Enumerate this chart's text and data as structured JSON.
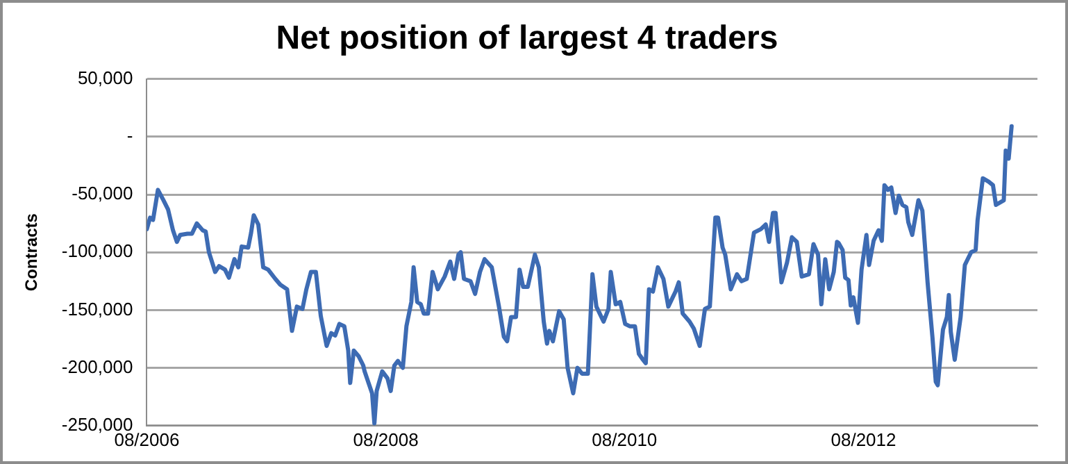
{
  "chart_data": {
    "type": "line",
    "title": "Net position of largest 4 traders",
    "ylabel": "Contracts",
    "x": [
      "2006-08-01",
      "2006-08-11",
      "2006-08-20",
      "2006-09-04",
      "2006-09-21",
      "2006-10-05",
      "2006-10-20",
      "2006-11-01",
      "2006-11-11",
      "2006-12-03",
      "2006-12-17",
      "2007-01-01",
      "2007-01-19",
      "2007-01-28",
      "2007-02-07",
      "2007-02-26",
      "2007-03-10",
      "2007-03-28",
      "2007-04-09",
      "2007-04-26",
      "2007-05-08",
      "2007-05-18",
      "2007-06-07",
      "2007-06-16",
      "2007-06-24",
      "2007-07-08",
      "2007-07-23",
      "2007-08-07",
      "2007-08-29",
      "2007-09-13",
      "2007-10-04",
      "2007-10-19",
      "2007-11-03",
      "2007-11-20",
      "2007-12-02",
      "2007-12-16",
      "2007-12-31",
      "2008-01-15",
      "2008-02-02",
      "2008-02-16",
      "2008-02-28",
      "2008-03-12",
      "2008-03-27",
      "2008-04-08",
      "2008-04-14",
      "2008-04-25",
      "2008-05-10",
      "2008-05-24",
      "2008-05-28",
      "2008-06-20",
      "2008-06-27",
      "2008-07-04",
      "2008-07-21",
      "2008-08-06",
      "2008-08-16",
      "2008-08-27",
      "2008-09-07",
      "2008-09-22",
      "2008-10-03",
      "2008-10-18",
      "2008-10-25",
      "2008-11-05",
      "2008-11-16",
      "2008-11-25",
      "2008-12-08",
      "2008-12-22",
      "2009-01-07",
      "2009-01-28",
      "2009-02-14",
      "2009-02-26",
      "2009-03-11",
      "2009-03-18",
      "2009-03-28",
      "2009-04-17",
      "2009-05-01",
      "2009-05-16",
      "2009-05-30",
      "2009-06-21",
      "2009-07-13",
      "2009-07-28",
      "2009-08-07",
      "2009-08-19",
      "2009-09-03",
      "2009-09-14",
      "2009-09-25",
      "2009-10-09",
      "2009-10-31",
      "2009-11-12",
      "2009-11-27",
      "2009-12-07",
      "2009-12-14",
      "2009-12-25",
      "2010-01-13",
      "2010-01-27",
      "2010-02-08",
      "2010-02-25",
      "2010-03-10",
      "2010-03-24",
      "2010-04-11",
      "2010-04-25",
      "2010-05-07",
      "2010-05-29",
      "2010-06-13",
      "2010-06-20",
      "2010-07-05",
      "2010-07-19",
      "2010-08-03",
      "2010-08-17",
      "2010-09-02",
      "2010-09-14",
      "2010-09-24",
      "2010-10-05",
      "2010-10-15",
      "2010-10-27",
      "2010-11-11",
      "2010-11-28",
      "2010-12-13",
      "2011-01-04",
      "2011-01-14",
      "2011-01-26",
      "2011-02-16",
      "2011-03-01",
      "2011-03-19",
      "2011-04-04",
      "2011-04-19",
      "2011-05-06",
      "2011-05-14",
      "2011-05-28",
      "2011-06-05",
      "2011-06-22",
      "2011-07-11",
      "2011-07-25",
      "2011-08-10",
      "2011-09-01",
      "2011-09-22",
      "2011-10-07",
      "2011-10-17",
      "2011-10-29",
      "2011-11-06",
      "2011-11-24",
      "2011-12-11",
      "2011-12-26",
      "2012-01-10",
      "2012-01-25",
      "2012-02-16",
      "2012-03-01",
      "2012-03-15",
      "2012-03-25",
      "2012-04-06",
      "2012-04-18",
      "2012-05-02",
      "2012-05-12",
      "2012-05-17",
      "2012-05-29",
      "2012-06-06",
      "2012-06-16",
      "2012-06-23",
      "2012-07-01",
      "2012-07-15",
      "2012-07-26",
      "2012-08-10",
      "2012-08-18",
      "2012-09-01",
      "2012-09-16",
      "2012-09-26",
      "2012-10-04",
      "2012-10-15",
      "2012-10-25",
      "2012-11-07",
      "2012-11-17",
      "2012-11-28",
      "2012-12-10",
      "2012-12-16",
      "2012-12-28",
      "2013-01-16",
      "2013-01-28",
      "2013-02-13",
      "2013-02-28",
      "2013-03-10",
      "2013-03-16",
      "2013-04-01",
      "2013-04-13",
      "2013-04-19",
      "2013-04-25",
      "2013-05-07",
      "2013-05-25",
      "2013-06-07",
      "2013-06-26",
      "2013-07-10",
      "2013-07-16",
      "2013-08-01",
      "2013-08-19",
      "2013-09-01",
      "2013-09-10",
      "2013-10-04",
      "2013-10-10",
      "2013-10-19",
      "2013-10-28"
    ],
    "series": [
      {
        "color": "#3d6bb3",
        "values": [
          -80000,
          -70000,
          -72000,
          -46000,
          -55000,
          -63000,
          -81000,
          -91000,
          -85000,
          -84000,
          -84000,
          -75000,
          -81000,
          -82000,
          -100000,
          -117000,
          -112000,
          -115000,
          -122000,
          -106000,
          -113000,
          -95000,
          -96000,
          -83000,
          -68000,
          -76000,
          -113000,
          -115000,
          -123000,
          -128000,
          -132000,
          -168000,
          -147000,
          -149000,
          -132000,
          -117000,
          -117000,
          -155000,
          -181000,
          -170000,
          -172000,
          -162000,
          -164000,
          -185000,
          -213000,
          -185000,
          -190000,
          -198000,
          -203000,
          -222000,
          -248000,
          -220000,
          -203000,
          -209000,
          -220000,
          -198000,
          -194000,
          -200000,
          -164000,
          -143000,
          -113000,
          -143000,
          -145000,
          -153000,
          -153000,
          -117000,
          -132000,
          -121000,
          -108000,
          -123000,
          -102000,
          -100000,
          -123000,
          -125000,
          -136000,
          -117000,
          -106000,
          -113000,
          -147000,
          -173000,
          -177000,
          -156000,
          -156000,
          -115000,
          -130000,
          -130000,
          -102000,
          -113000,
          -160000,
          -179000,
          -168000,
          -177000,
          -151000,
          -158000,
          -200000,
          -222000,
          -200000,
          -205000,
          -205000,
          -119000,
          -147000,
          -160000,
          -149000,
          -117000,
          -145000,
          -143000,
          -162000,
          -164000,
          -164000,
          -188000,
          -192000,
          -196000,
          -132000,
          -134000,
          -113000,
          -123000,
          -147000,
          -134000,
          -126000,
          -153000,
          -160000,
          -166000,
          -181000,
          -149000,
          -147000,
          -70000,
          -70000,
          -96000,
          -102000,
          -132000,
          -119000,
          -125000,
          -123000,
          -83000,
          -80000,
          -76000,
          -91000,
          -66000,
          -66000,
          -126000,
          -109000,
          -87000,
          -91000,
          -121000,
          -119000,
          -93000,
          -102000,
          -145000,
          -106000,
          -132000,
          -117000,
          -91000,
          -92000,
          -98000,
          -122000,
          -124000,
          -146000,
          -139000,
          -161000,
          -115000,
          -85000,
          -111000,
          -90000,
          -81000,
          -90000,
          -42000,
          -46000,
          -44000,
          -66000,
          -51000,
          -59000,
          -61000,
          -74000,
          -85000,
          -55000,
          -64000,
          -126000,
          -174000,
          -212000,
          -215000,
          -167000,
          -156000,
          -137000,
          -169000,
          -193000,
          -156000,
          -111000,
          -100000,
          -98000,
          -72000,
          -36000,
          -39000,
          -42000,
          -59000,
          -55000,
          -12000,
          -19000,
          9000
        ]
      }
    ],
    "xlim": [
      "2006-08-01",
      "2014-01-15"
    ],
    "xticks": [
      {
        "value": "2006-08-01",
        "label": "08/2006"
      },
      {
        "value": "2008-08-01",
        "label": "08/2008"
      },
      {
        "value": "2010-08-01",
        "label": "08/2010"
      },
      {
        "value": "2012-08-01",
        "label": "08/2012"
      }
    ],
    "ylim": [
      -250000,
      50000
    ],
    "yticks": [
      {
        "value": -250000,
        "label": "-250,000"
      },
      {
        "value": -200000,
        "label": "-200,000"
      },
      {
        "value": -150000,
        "label": "-150,000"
      },
      {
        "value": -100000,
        "label": "-100,000"
      },
      {
        "value": -50000,
        "label": "-50,000"
      },
      {
        "value": 0,
        "label": "-"
      },
      {
        "value": 50000,
        "label": "50,000"
      }
    ],
    "grid": "y",
    "marker": "none",
    "line_style": "solid"
  }
}
